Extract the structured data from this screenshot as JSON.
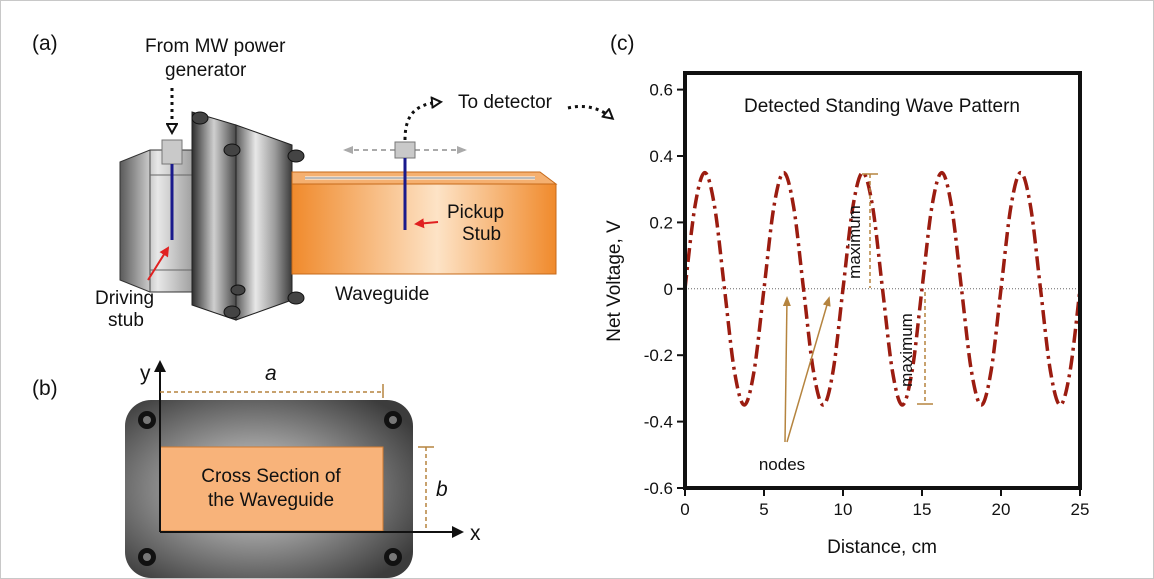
{
  "panel_a": {
    "label": "(a)",
    "source": [
      "From MW power",
      "generator"
    ],
    "detector": "To detector",
    "pickup": [
      "Pickup",
      "Stub"
    ],
    "driving": [
      "Driving",
      "stub"
    ],
    "waveguide": "Waveguide"
  },
  "panel_b": {
    "label": "(b)",
    "y_axis": "y",
    "x_axis": "x",
    "width": "a",
    "height": "b",
    "section": [
      "Cross Section of",
      "the Waveguide"
    ]
  },
  "chart_data": {
    "type": "line",
    "panel_label": "(c)",
    "title": "Detected Standing Wave Pattern",
    "xlabel": "Distance, cm",
    "ylabel": "Net Voltage, V",
    "annotations": [
      "maximum",
      "maximum",
      "nodes"
    ],
    "color": "#9b1c10",
    "x": [
      0,
      0.625,
      1.25,
      1.875,
      2.5,
      3.125,
      3.75,
      4.375,
      5,
      5.625,
      6.25,
      6.875,
      7.5,
      8.125,
      8.75,
      9.375,
      10,
      10.625,
      11.25,
      11.875,
      12.5,
      13.125,
      13.75,
      14.375,
      15,
      15.625,
      16.25,
      16.875,
      17.5,
      18.125,
      18.75,
      19.375,
      20,
      20.625,
      21.25,
      21.875,
      22.5,
      23.125,
      23.75,
      24.375,
      25
    ],
    "values": [
      0,
      0.247,
      0.35,
      0.247,
      0,
      -0.247,
      -0.35,
      -0.247,
      0,
      0.247,
      0.35,
      0.247,
      0,
      -0.247,
      -0.35,
      -0.247,
      0,
      0.247,
      0.35,
      0.247,
      0,
      -0.247,
      -0.35,
      -0.247,
      0,
      0.247,
      0.35,
      0.247,
      0,
      -0.247,
      -0.35,
      -0.247,
      0,
      0.247,
      0.35,
      0.247,
      0,
      -0.247,
      -0.35,
      -0.247,
      0
    ],
    "xlim": [
      0,
      25
    ],
    "ylim": [
      -0.6,
      0.65
    ],
    "xticks": [
      0,
      5,
      10,
      15,
      20,
      25
    ],
    "yticks": [
      -0.6,
      -0.4,
      -0.2,
      0,
      0.2,
      0.4,
      0.6
    ]
  }
}
